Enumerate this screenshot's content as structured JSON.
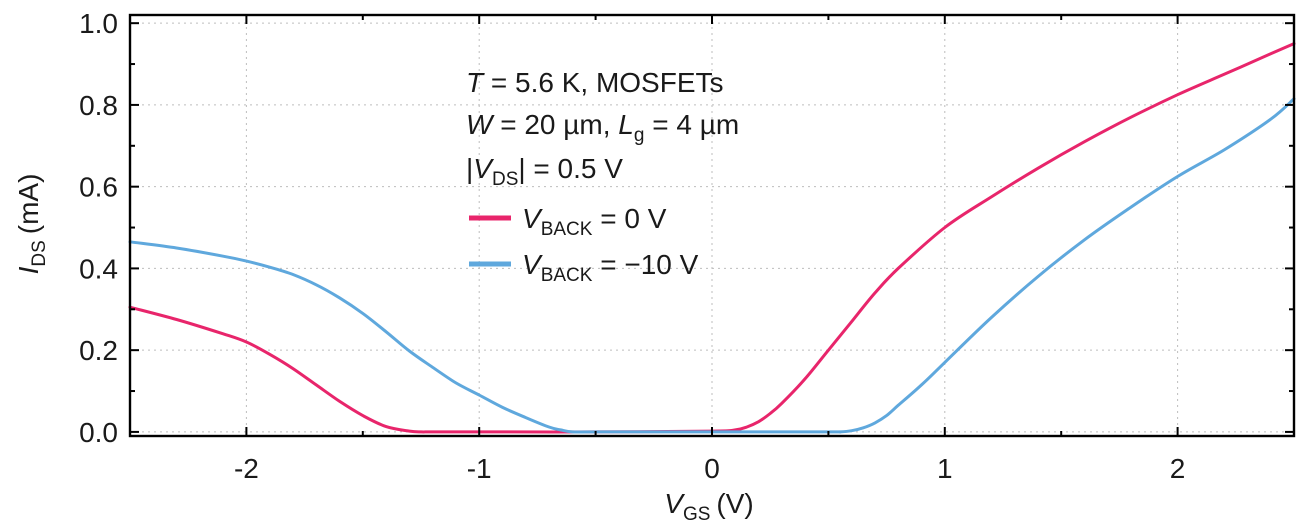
{
  "chart_data": {
    "type": "line",
    "xlabel": {
      "var": "V",
      "sub": "GS",
      "unit": "(V)"
    },
    "ylabel": {
      "var": "I",
      "sub": "DS",
      "unit": "(mA)"
    },
    "xlim": [
      -2.5,
      2.5
    ],
    "ylim": [
      -0.01,
      1.02
    ],
    "xticks": [
      -2,
      -1,
      0,
      1,
      2
    ],
    "xtick_labels": [
      "-2",
      "-1",
      "0",
      "1",
      "2"
    ],
    "yticks": [
      0.0,
      0.2,
      0.4,
      0.6,
      0.8,
      1.0
    ],
    "ytick_labels": [
      "0.0",
      "0.2",
      "0.4",
      "0.6",
      "0.8",
      "1.0"
    ],
    "grid": true,
    "annotations": {
      "line1": {
        "var": "T",
        "rest": " = 5.6 K, MOSFETs"
      },
      "line2": {
        "var1": "W",
        "mid": " = 20 µm, ",
        "var2": "L",
        "sub2": "g",
        "rest": " = 4 µm"
      },
      "line3": {
        "pre": "|",
        "var": "V",
        "sub": "DS",
        "rest": "| = 0.5 V"
      }
    },
    "legend_position": "top-center",
    "series": [
      {
        "name": {
          "var": "V",
          "sub": "BACK",
          "rest": " = 0 V"
        },
        "color": "#e8256b",
        "x": [
          -2.5,
          -2.3,
          -2.1,
          -2.0,
          -1.9,
          -1.8,
          -1.7,
          -1.6,
          -1.5,
          -1.4,
          -1.3,
          -1.25,
          -1.2,
          -1.0,
          -0.5,
          0.0,
          0.1,
          0.15,
          0.2,
          0.25,
          0.3,
          0.4,
          0.5,
          0.6,
          0.7,
          0.8,
          1.0,
          1.2,
          1.4,
          1.6,
          1.8,
          2.0,
          2.2,
          2.4,
          2.5
        ],
        "y": [
          0.305,
          0.275,
          0.24,
          0.22,
          0.19,
          0.155,
          0.115,
          0.075,
          0.04,
          0.013,
          0.002,
          0.0,
          0.0,
          0.0,
          0.0,
          0.002,
          0.005,
          0.012,
          0.025,
          0.045,
          0.07,
          0.13,
          0.2,
          0.27,
          0.34,
          0.4,
          0.5,
          0.575,
          0.645,
          0.71,
          0.77,
          0.825,
          0.875,
          0.925,
          0.95
        ]
      },
      {
        "name": {
          "var": "V",
          "sub": "BACK",
          "rest": " = −10 V"
        },
        "color": "#5fa8dd",
        "x": [
          -2.5,
          -2.3,
          -2.1,
          -2.0,
          -1.9,
          -1.8,
          -1.7,
          -1.6,
          -1.5,
          -1.4,
          -1.3,
          -1.2,
          -1.1,
          -1.0,
          -0.9,
          -0.8,
          -0.7,
          -0.65,
          -0.6,
          -0.5,
          0.0,
          0.5,
          0.55,
          0.6,
          0.65,
          0.7,
          0.75,
          0.8,
          0.9,
          1.0,
          1.2,
          1.4,
          1.6,
          1.8,
          2.0,
          2.2,
          2.4,
          2.5
        ],
        "y": [
          0.465,
          0.45,
          0.43,
          0.418,
          0.403,
          0.385,
          0.36,
          0.328,
          0.29,
          0.245,
          0.198,
          0.158,
          0.12,
          0.09,
          0.06,
          0.035,
          0.012,
          0.005,
          0.0,
          0.0,
          0.0,
          0.0,
          0.0,
          0.003,
          0.01,
          0.022,
          0.04,
          0.065,
          0.115,
          0.17,
          0.28,
          0.38,
          0.47,
          0.55,
          0.625,
          0.69,
          0.765,
          0.815
        ]
      }
    ]
  }
}
